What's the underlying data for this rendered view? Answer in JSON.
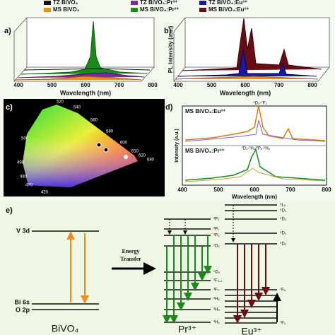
{
  "legend": {
    "items": [
      "TZ BiVO₄",
      "TZ BiVO₄:Pr³⁺",
      "TZ BiVO₄:Eu³⁺",
      "MS BiVO₄",
      "MS BiVO₄:Pr³⁺",
      "MS BiVO₄:Eu³⁺"
    ]
  },
  "panel_a": {
    "label": "a)",
    "x_label": "Wavelength (nm)",
    "xticks": [
      "400",
      "500",
      "600",
      "700",
      "800"
    ]
  },
  "panel_b": {
    "label": "b)",
    "y_label": "PL Intensity (a.u.)",
    "x_label": "Wavelength (nm)",
    "xticks": [
      "400",
      "500",
      "600",
      "700",
      "800"
    ]
  },
  "panel_c": {
    "label": "c)",
    "wavelengths": [
      "520",
      "540",
      "560",
      "580",
      "600",
      "610",
      "620",
      "680",
      "500",
      "490",
      "480",
      "470",
      "420"
    ]
  },
  "panel_d": {
    "label": "d)",
    "top_label": "MS BiVO₄:Eu³⁺",
    "bottom_label": "MS BiVO₄:Pr³⁺",
    "y_label": "Intensity (a.u.)",
    "x_label": "Wavelength (nm)",
    "xticks": [
      "400",
      "500",
      "600",
      "700",
      "800"
    ],
    "top_transition": "⁵D₀-⁷F₂",
    "bottom_transition": "¹D₂-³H₄/³P₀-³H₆"
  },
  "panel_e": {
    "label": "e)",
    "host": {
      "cb": "V 3d",
      "vb1": "Bi 6s",
      "vb2": "O 2p",
      "name": "BiVO₄"
    },
    "transfer": [
      "Energy",
      "Transfer"
    ],
    "pr": {
      "name": "Pr³⁺",
      "levels": [
        "³P₂",
        "³P₁",
        "³P₀",
        "¹D₂",
        "¹G₄",
        "³F₃,₄",
        "³F₂",
        "³H₆",
        "³H₅",
        "³H₄"
      ]
    },
    "eu": {
      "name": "Eu³⁺",
      "levels": [
        "⁵L₆",
        "⁵D₃",
        "⁵D₂",
        "⁵D₁",
        "⁵D₀",
        "⁷F₆",
        "⁷F₀"
      ]
    }
  }
}
